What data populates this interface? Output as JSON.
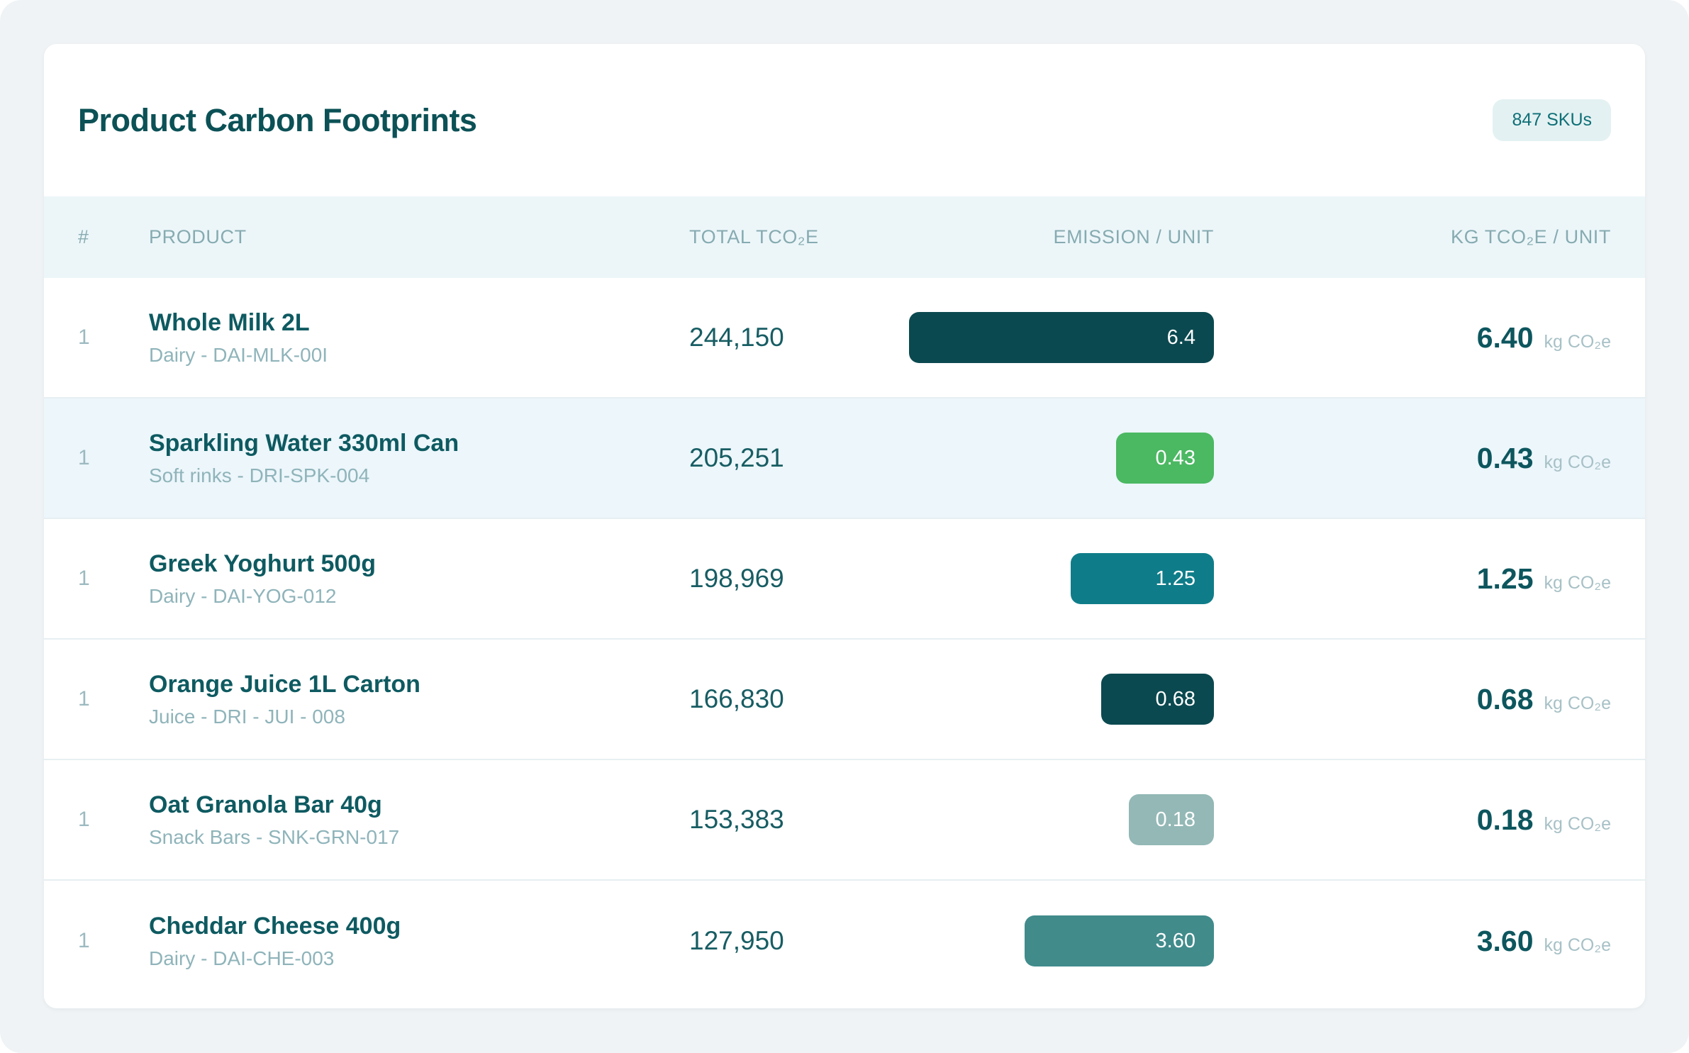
{
  "page": {
    "title": "Product Carbon Footprints",
    "sku_badge": "847 SKUs"
  },
  "table": {
    "columns": {
      "index": "#",
      "product": "PRODUCT",
      "total": "TOTAL TCO₂E",
      "emission": "EMISSION / UNIT",
      "kg_unit": "KG TCO₂E / UNIT"
    },
    "unit_suffix": "kg CO₂e",
    "rows": [
      {
        "index": "1",
        "name": "Whole Milk 2L",
        "category": "Dairy - DAI-MLK-00I",
        "total": "244,150",
        "emission": "6.4",
        "bar_pct": 100,
        "bar_color": "#0b4950",
        "kg": "6.40",
        "highlighted": false
      },
      {
        "index": "1",
        "name": "Sparkling Water 330ml Can",
        "category": "Soft rinks - DRI-SPK-004",
        "total": "205,251",
        "emission": "0.43",
        "bar_pct": 32,
        "bar_color": "#4bb862",
        "kg": "0.43",
        "highlighted": true
      },
      {
        "index": "1",
        "name": "Greek Yoghurt 500g",
        "category": "Dairy - DAI-YOG-012",
        "total": "198,969",
        "emission": "1.25",
        "bar_pct": 47,
        "bar_color": "#0f7d89",
        "kg": "1.25",
        "highlighted": false
      },
      {
        "index": "1",
        "name": "Orange Juice 1L Carton",
        "category": "Juice - DRI - JUI - 008",
        "total": "166,830",
        "emission": "0.68",
        "bar_pct": 37,
        "bar_color": "#0b4950",
        "kg": "0.68",
        "highlighted": false
      },
      {
        "index": "1",
        "name": "Oat Granola Bar 40g",
        "category": "Snack Bars - SNK-GRN-017",
        "total": "153,383",
        "emission": "0.18",
        "bar_pct": 28,
        "bar_color": "#93b8b6",
        "kg": "0.18",
        "highlighted": false
      },
      {
        "index": "1",
        "name": "Cheddar Cheese 400g",
        "category": "Dairy - DAI-CHE-003",
        "total": "127,950",
        "emission": "3.60",
        "bar_pct": 62,
        "bar_color": "#418b8b",
        "kg": "3.60",
        "highlighted": false
      }
    ]
  }
}
